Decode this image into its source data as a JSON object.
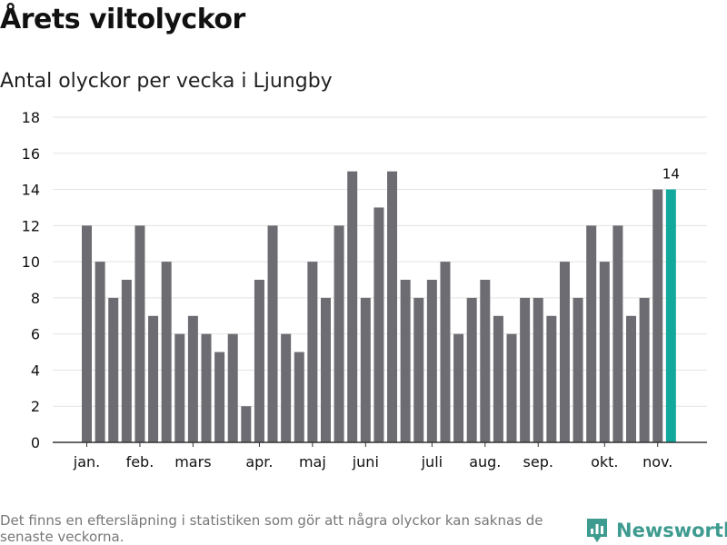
{
  "header": {
    "title": "Årets viltolyckor",
    "subtitle": "Antal olyckor per vecka i Ljungby"
  },
  "chart_data": {
    "type": "bar",
    "title": "Årets viltolyckor",
    "subtitle": "Antal olyckor per vecka i Ljungby",
    "xlabel": "",
    "ylabel": "",
    "ylim": [
      0,
      18
    ],
    "yticks": [
      0,
      2,
      4,
      6,
      8,
      10,
      12,
      14,
      16,
      18
    ],
    "grid": true,
    "legend": "none",
    "values": [
      12,
      10,
      8,
      9,
      12,
      7,
      10,
      6,
      7,
      6,
      5,
      6,
      2,
      9,
      12,
      6,
      5,
      10,
      8,
      12,
      15,
      8,
      13,
      15,
      9,
      8,
      9,
      10,
      6,
      8,
      9,
      7,
      6,
      8,
      8,
      7,
      10,
      8,
      12,
      10,
      12,
      7,
      8,
      14,
      14
    ],
    "month_labels": [
      {
        "label": "jan.",
        "bar_index": 0
      },
      {
        "label": "feb.",
        "bar_index": 4
      },
      {
        "label": "mars",
        "bar_index": 8
      },
      {
        "label": "apr.",
        "bar_index": 13
      },
      {
        "label": "maj",
        "bar_index": 17
      },
      {
        "label": "juni",
        "bar_index": 21
      },
      {
        "label": "juli",
        "bar_index": 26
      },
      {
        "label": "aug.",
        "bar_index": 30
      },
      {
        "label": "sep.",
        "bar_index": 34
      },
      {
        "label": "okt.",
        "bar_index": 39
      },
      {
        "label": "nov.",
        "bar_index": 43
      }
    ],
    "highlight_index": 44,
    "highlight_label": "14",
    "bar_color": "#6d6c72",
    "highlight_color": "#12a89c",
    "grid_color": "#e3e3e3",
    "axis_color": "#333333"
  },
  "footer": {
    "note": "Det finns en eftersläpning i statistiken som gör att några olyckor kan saknas de senaste veckorna.",
    "brand": "Newsworthy",
    "brand_color": "#3e9b8f",
    "brand_icon": "bar-chart-logo-icon"
  }
}
